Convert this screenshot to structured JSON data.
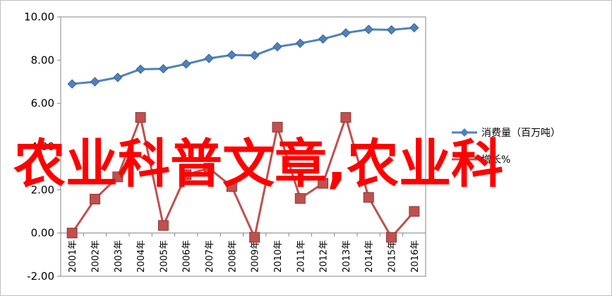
{
  "chart_data": {
    "type": "line",
    "categories": [
      "2001年",
      "2002年",
      "2003年",
      "2004年",
      "2005年",
      "2006年",
      "2007年",
      "2008年",
      "2009年",
      "2010年",
      "2011年",
      "2012年",
      "2013年",
      "2014年",
      "2015年",
      "2016年"
    ],
    "series": [
      {
        "name": "消费量（百万吨）",
        "color": "#4f81bd",
        "marker": "diamond",
        "values": [
          6.9,
          7.0,
          7.2,
          7.58,
          7.6,
          7.82,
          8.08,
          8.24,
          8.22,
          8.62,
          8.78,
          8.98,
          9.26,
          9.42,
          9.4,
          9.5
        ]
      },
      {
        "name": "增长%",
        "color": "#c0504d",
        "marker": "square",
        "values": [
          0.0,
          1.57,
          2.6,
          5.35,
          0.35,
          2.7,
          3.0,
          2.15,
          -0.2,
          4.9,
          1.6,
          2.3,
          5.35,
          1.65,
          -0.2,
          1.0
        ]
      }
    ],
    "yticks": [
      "10.00",
      "8.00",
      "6.00",
      "4.00",
      "2.00",
      "0.00",
      "-2.00"
    ],
    "ylim": [
      -2,
      10
    ],
    "grid": false,
    "legend_position": "right",
    "overlay_text": "农业科普文章,农业科"
  }
}
